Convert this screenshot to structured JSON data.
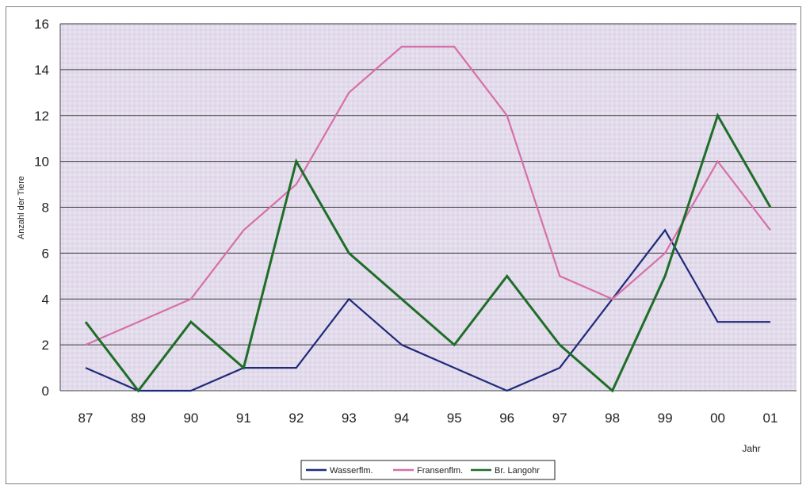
{
  "chart_data": {
    "type": "line",
    "title": "",
    "xlabel": "Jahr",
    "ylabel": "Anzahl der Tiere",
    "categories": [
      "87",
      "89",
      "90",
      "91",
      "92",
      "93",
      "94",
      "95",
      "96",
      "97",
      "98",
      "99",
      "00",
      "01"
    ],
    "ylim": [
      0,
      16
    ],
    "yticks": [
      0,
      2,
      4,
      6,
      8,
      10,
      12,
      14,
      16
    ],
    "grid": true,
    "legend_position": "bottom",
    "plot_background": "#e3dcec",
    "series": [
      {
        "name": "Wasserflm.",
        "color": "#1f2a7a",
        "values": [
          1,
          0,
          0,
          1,
          1,
          4,
          2,
          1,
          0,
          1,
          4,
          7,
          3,
          3
        ]
      },
      {
        "name": "Fransenflm.",
        "color": "#d76fa8",
        "values": [
          2,
          3,
          4,
          7,
          9,
          13,
          15,
          15,
          12,
          5,
          4,
          6,
          10,
          7
        ]
      },
      {
        "name": "Br. Langohr",
        "color": "#1e6e28",
        "values": [
          3,
          0,
          3,
          1,
          10,
          6,
          4,
          2,
          5,
          2,
          0,
          5,
          12,
          8
        ]
      }
    ]
  }
}
